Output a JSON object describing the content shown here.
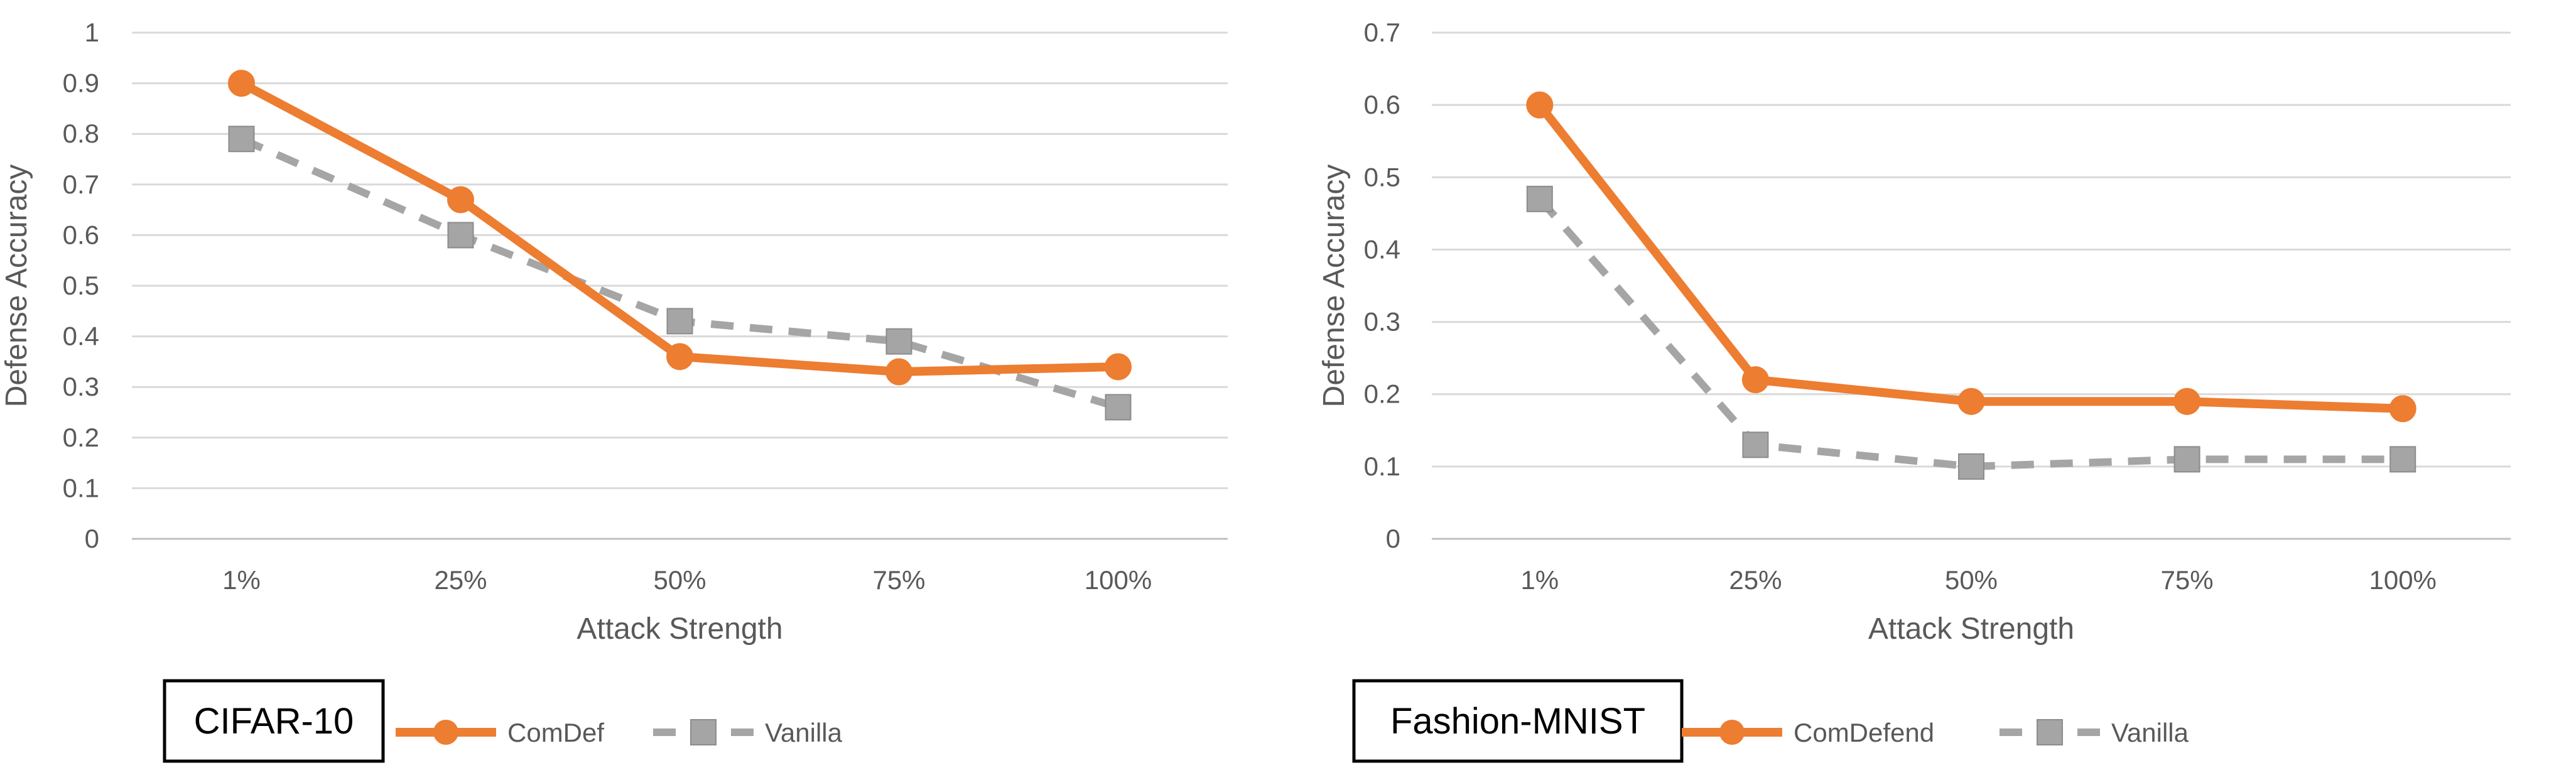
{
  "chart_data": [
    {
      "type": "line",
      "categories": [
        "1%",
        "25%",
        "50%",
        "75%",
        "100%"
      ],
      "series": [
        {
          "name": "ComDef",
          "values": [
            0.9,
            0.67,
            0.36,
            0.33,
            0.34
          ],
          "color": "#ED7D31",
          "marker": "circle",
          "dash": "solid"
        },
        {
          "name": "Vanilla",
          "values": [
            0.79,
            0.6,
            0.43,
            0.39,
            0.26
          ],
          "color": "#A5A5A5",
          "marker": "square",
          "dash": "dashed"
        }
      ],
      "xlabel": "Attack Strength",
      "ylabel": "Defense Accuracy",
      "ylim": [
        0,
        1
      ],
      "ystep": 0.1,
      "ytick_labels": [
        "0",
        "0.1",
        "0.2",
        "0.3",
        "0.4",
        "0.5",
        "0.6",
        "0.7",
        "0.8",
        "0.9",
        "1"
      ],
      "grid": true,
      "legend_placement": "bottom",
      "dataset_label": "CIFAR-10"
    },
    {
      "type": "line",
      "categories": [
        "1%",
        "25%",
        "50%",
        "75%",
        "100%"
      ],
      "series": [
        {
          "name": "ComDefend",
          "values": [
            0.6,
            0.22,
            0.19,
            0.19,
            0.18
          ],
          "color": "#ED7D31",
          "marker": "circle",
          "dash": "solid"
        },
        {
          "name": "Vanilla",
          "values": [
            0.47,
            0.13,
            0.1,
            0.11,
            0.11
          ],
          "color": "#A5A5A5",
          "marker": "square",
          "dash": "dashed"
        }
      ],
      "xlabel": "Attack Strength",
      "ylabel": "Defense Accuracy",
      "ylim": [
        0,
        0.7
      ],
      "ystep": 0.1,
      "ytick_labels": [
        "0",
        "0.1",
        "0.2",
        "0.3",
        "0.4",
        "0.5",
        "0.6",
        "0.7"
      ],
      "grid": true,
      "legend_placement": "bottom",
      "dataset_label": "Fashion-MNIST"
    }
  ]
}
